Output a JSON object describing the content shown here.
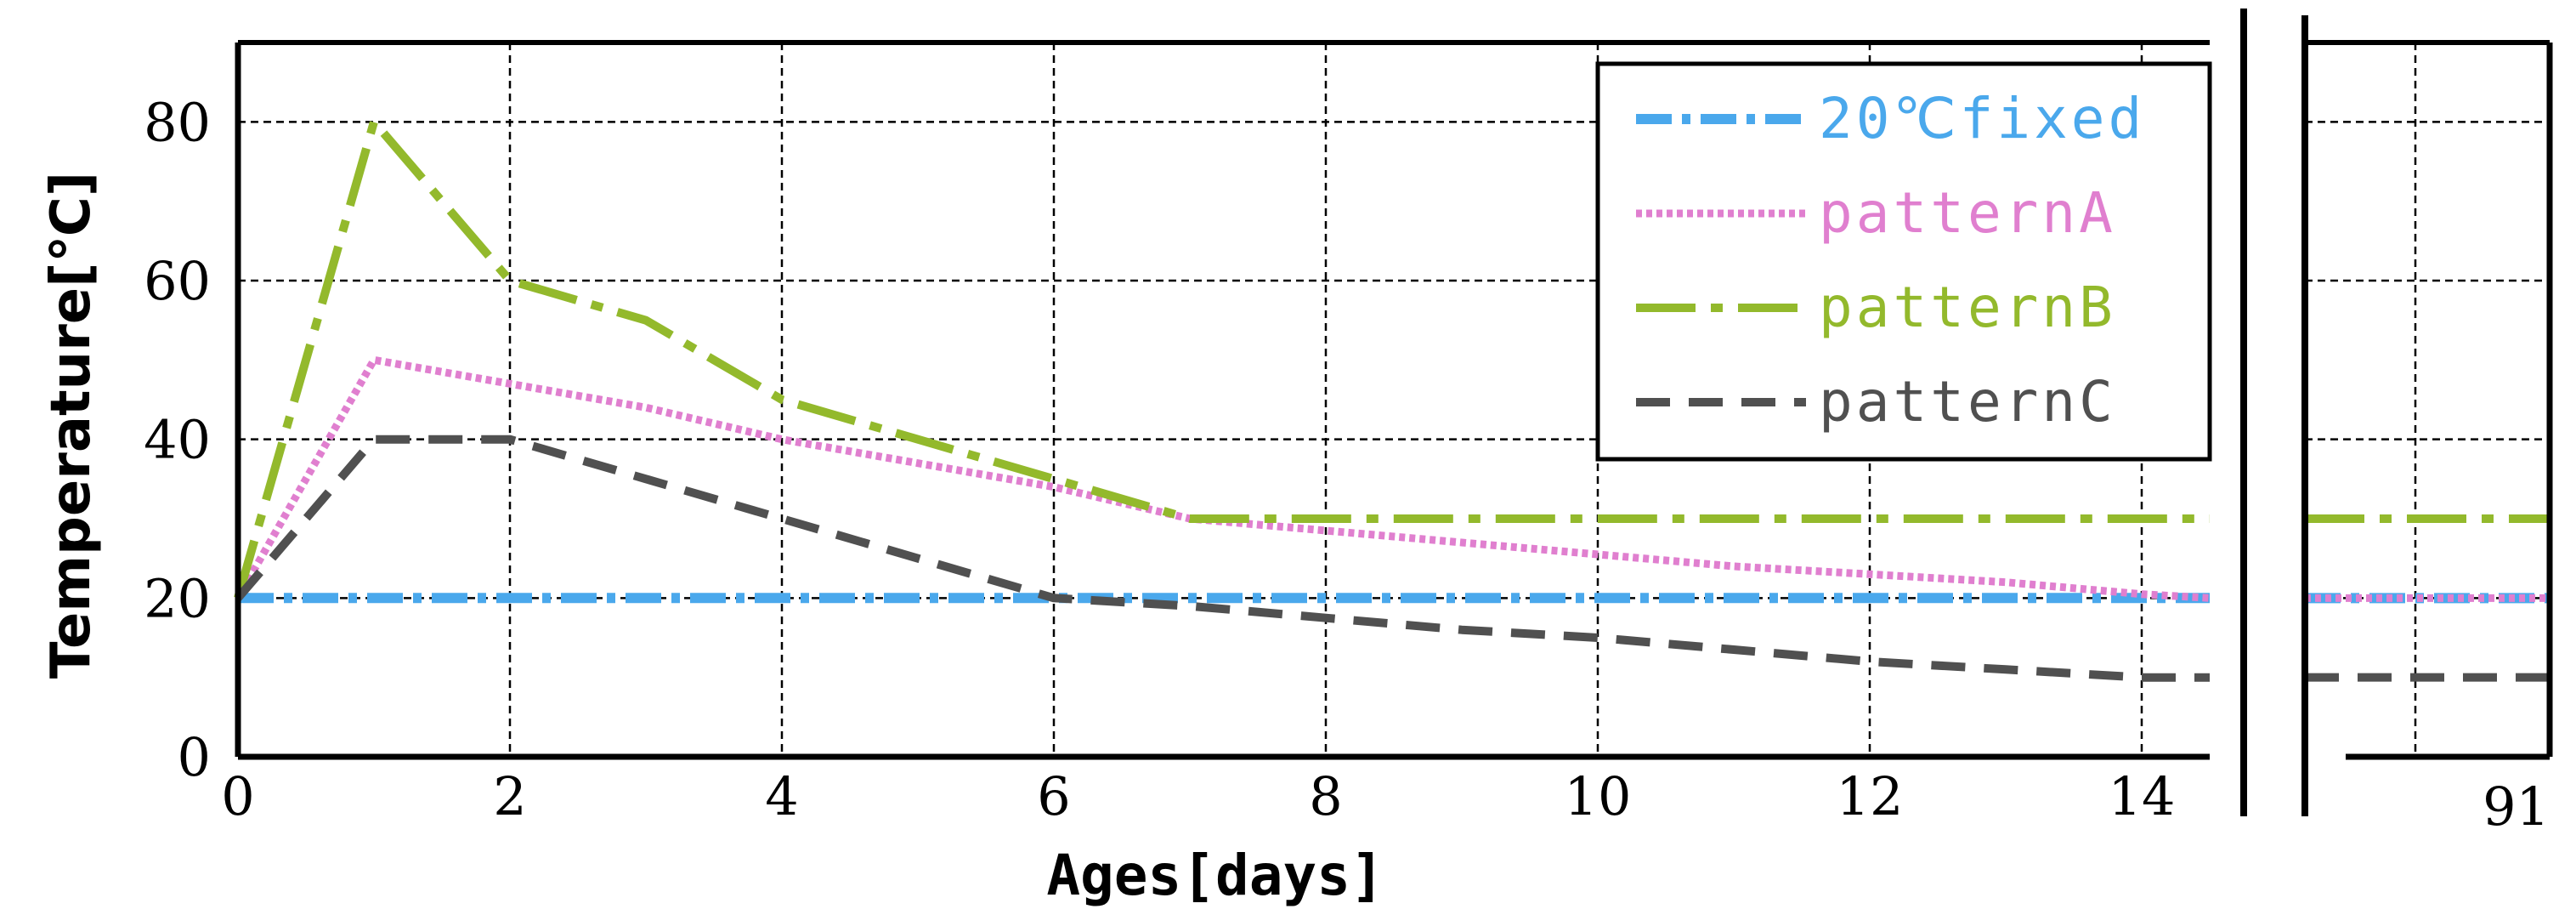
{
  "chart_data": {
    "type": "line",
    "xlabel": "Ages[days]",
    "ylabel": "Temperature[℃]",
    "xlim": [
      0,
      14.5
    ],
    "ylim": [
      0,
      90
    ],
    "x_ticks": [
      "0",
      "2",
      "4",
      "6",
      "8",
      "10",
      "12",
      "14"
    ],
    "y_ticks": [
      "0",
      "20",
      "40",
      "60",
      "80"
    ],
    "broken_axis_tick": "91",
    "grid": true,
    "legend_position": "top-right",
    "series": [
      {
        "name": "20℃fixed",
        "color": "#4aa8ec",
        "dash": "dash-dot",
        "x": [
          0,
          14.5
        ],
        "y": [
          20,
          20
        ],
        "continues_to_day_91": true
      },
      {
        "name": "patternA",
        "color": "#e07fcf",
        "dash": "dotted",
        "x": [
          0,
          1,
          2,
          3,
          4,
          5,
          6,
          7,
          8,
          9,
          10,
          11,
          12,
          13,
          14,
          14.5
        ],
        "y": [
          20,
          50,
          47,
          44,
          40,
          37,
          34,
          30,
          28.5,
          27,
          25.5,
          24,
          23,
          22,
          20.5,
          20
        ],
        "continues_to_day_91": true
      },
      {
        "name": "patternB",
        "color": "#93b92c",
        "dash": "long-dash-dot",
        "x": [
          0,
          1,
          2,
          3,
          4,
          5,
          6,
          7,
          14.5
        ],
        "y": [
          20,
          80,
          60,
          55,
          45,
          40,
          35,
          30,
          30
        ],
        "continues_to_day_91": true
      },
      {
        "name": "patternC",
        "color": "#505050",
        "dash": "dashed",
        "x": [
          0,
          1,
          2,
          3,
          4,
          5,
          6,
          7,
          8,
          9,
          10,
          11,
          12,
          13,
          14,
          14.5
        ],
        "y": [
          20,
          40,
          40,
          35,
          30,
          25,
          20,
          19,
          17.5,
          16,
          15,
          13.5,
          12,
          11,
          10,
          10
        ],
        "continues_to_day_91": true
      }
    ]
  }
}
